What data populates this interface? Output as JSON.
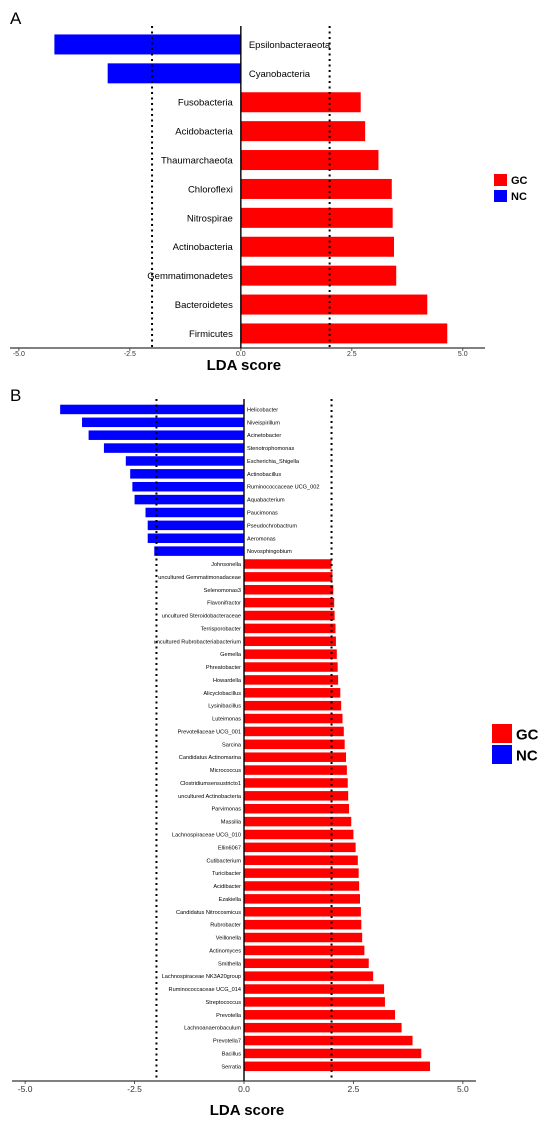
{
  "colors": {
    "GC": "#ff0000",
    "NC": "#0000ff"
  },
  "chart_data": [
    {
      "type": "bar",
      "orientation": "horizontal",
      "panel_label": "A",
      "xlabel": "LDA score",
      "xlim": [
        -5.2,
        5.5
      ],
      "xticks": [
        "-5.0",
        "-2.5",
        "0.0",
        "2.5",
        "5.0"
      ],
      "xtick_values": [
        -5,
        -2.5,
        0,
        2.5,
        5
      ],
      "threshold_lines": [
        -2,
        2
      ],
      "legend": {
        "placement": "right",
        "entries": [
          "GC",
          "NC"
        ]
      },
      "categories": [
        "Epsilonbacteraeota",
        "Cyanobacteria",
        "Fusobacteria",
        "Acidobacteria",
        "Thaumarchaeota",
        "Chloroflexi",
        "Nitrospirae",
        "Actinobacteria",
        "Gemmatimonadetes",
        "Bacteroidetes",
        "Firmicutes"
      ],
      "values": [
        -4.2,
        -3.0,
        2.7,
        2.8,
        3.1,
        3.4,
        3.42,
        3.45,
        3.5,
        4.2,
        4.65
      ],
      "groups": [
        "NC",
        "NC",
        "GC",
        "GC",
        "GC",
        "GC",
        "GC",
        "GC",
        "GC",
        "GC",
        "GC"
      ]
    },
    {
      "type": "bar",
      "orientation": "horizontal",
      "panel_label": "B",
      "xlabel": "LDA score",
      "xlim": [
        -5.3,
        5.3
      ],
      "xticks": [
        "-5.0",
        "-2.5",
        "0.0",
        "2.5",
        "5.0"
      ],
      "xtick_values": [
        -5,
        -2.5,
        0,
        2.5,
        5
      ],
      "threshold_lines": [
        -2,
        2
      ],
      "legend": {
        "placement": "right",
        "entries": [
          "GC",
          "NC"
        ]
      },
      "categories": [
        "Helicobacter",
        "Niveispirillum",
        "Acinetobacter",
        "Stenotrophomonas",
        "Escherichia_Shigella",
        "Actinobacillus",
        "Ruminococcaceae UCG_002",
        "Aquabacterium",
        "Paucimonas",
        "Pseudochrobactrum",
        "Aeromonas",
        "Novosphingobium",
        "Johnsonella",
        "uncultured Gemmatimonadaceae",
        "Selenomonas3",
        "Flavonifractor",
        "uncultured Steroidobacteraceae",
        "Terrisporobacter",
        "uncultured Rubrobacteriabacterium",
        "Gemella",
        "Phreatobacter",
        "Howardella",
        "Alicyclobacillus",
        "Lysinibacillus",
        "Luteimonas",
        "Prevotellaceae UCG_001",
        "Sarcina",
        "Candidatus Actinomarina",
        "Micrococcus",
        "Clostridiumsensustricto1",
        "uncultured Actinobacteria",
        "Parvimonas",
        "Massilia",
        "Lachnospiraceae UCG_010",
        "Ellin6067",
        "Cutibacterium",
        "Turicibacter",
        "Acidibacter",
        "Ezakiella",
        "Candidatus Nitrocosmicus",
        "Rubrobacter",
        "Veillonella",
        "Actinomyces",
        "Smithella",
        "Lachnospiraceae NK3A20group",
        "Ruminococcaceae UCG_014",
        "Streptococcus",
        "Prevotella",
        "Lachnoanaerobaculum",
        "Prevotella7",
        "Bacillus",
        "Serratia"
      ],
      "values": [
        -4.2,
        -3.7,
        -3.55,
        -3.2,
        -2.7,
        -2.6,
        -2.55,
        -2.5,
        -2.25,
        -2.2,
        -2.2,
        -2.05,
        2.0,
        2.02,
        2.04,
        2.06,
        2.07,
        2.09,
        2.1,
        2.12,
        2.14,
        2.15,
        2.2,
        2.22,
        2.25,
        2.28,
        2.3,
        2.33,
        2.35,
        2.37,
        2.38,
        2.4,
        2.45,
        2.5,
        2.55,
        2.6,
        2.62,
        2.63,
        2.65,
        2.67,
        2.68,
        2.7,
        2.75,
        2.85,
        2.95,
        3.2,
        3.22,
        3.45,
        3.6,
        3.85,
        4.05,
        4.25
      ],
      "groups": [
        "NC",
        "NC",
        "NC",
        "NC",
        "NC",
        "NC",
        "NC",
        "NC",
        "NC",
        "NC",
        "NC",
        "NC",
        "GC",
        "GC",
        "GC",
        "GC",
        "GC",
        "GC",
        "GC",
        "GC",
        "GC",
        "GC",
        "GC",
        "GC",
        "GC",
        "GC",
        "GC",
        "GC",
        "GC",
        "GC",
        "GC",
        "GC",
        "GC",
        "GC",
        "GC",
        "GC",
        "GC",
        "GC",
        "GC",
        "GC",
        "GC",
        "GC",
        "GC",
        "GC",
        "GC",
        "GC",
        "GC",
        "GC",
        "GC",
        "GC",
        "GC",
        "GC"
      ]
    }
  ]
}
